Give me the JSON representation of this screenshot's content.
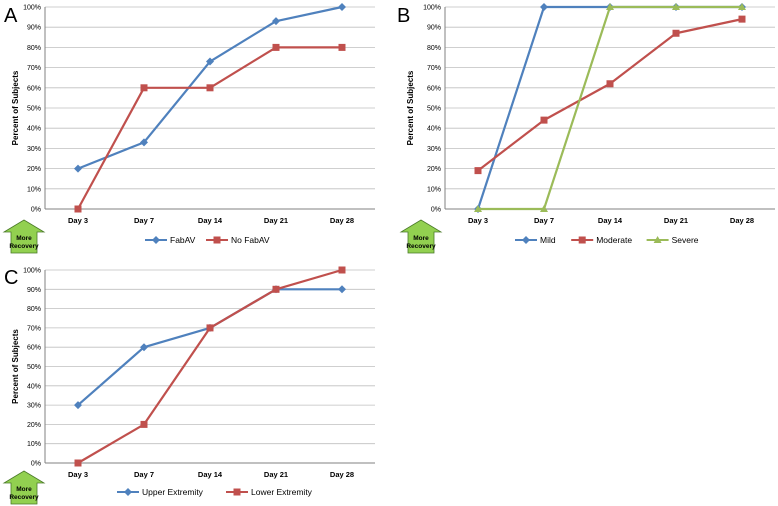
{
  "colors": {
    "blue": "#4f81bd",
    "red": "#c0504d",
    "green": "#9bbb59",
    "grid": "#bfbfbf",
    "arrow_fill": "#92d050",
    "arrow_stroke": "#4a7a28"
  },
  "recovery_label_line1": "More",
  "recovery_label_line2": "Recovery",
  "chart_data": [
    {
      "panel": "A",
      "type": "line",
      "ylabel": "Percent of Subjects",
      "categories": [
        "Day 3",
        "Day 7",
        "Day 14",
        "Day 21",
        "Day 28"
      ],
      "yticks": [
        "0%",
        "10%",
        "20%",
        "30%",
        "40%",
        "50%",
        "60%",
        "70%",
        "80%",
        "90%",
        "100%"
      ],
      "ylim": [
        0,
        100
      ],
      "series": [
        {
          "name": "FabAV",
          "color": "blue",
          "marker": "diamond",
          "values": [
            20,
            33,
            73,
            93,
            100
          ]
        },
        {
          "name": "No FabAV",
          "color": "red",
          "marker": "square",
          "values": [
            0,
            60,
            60,
            80,
            80
          ]
        }
      ]
    },
    {
      "panel": "B",
      "type": "line",
      "ylabel": "Percent of Subjects",
      "categories": [
        "Day 3",
        "Day 7",
        "Day 14",
        "Day 21",
        "Day 28"
      ],
      "yticks": [
        "0%",
        "10%",
        "20%",
        "30%",
        "40%",
        "50%",
        "60%",
        "70%",
        "80%",
        "90%",
        "100%"
      ],
      "ylim": [
        0,
        100
      ],
      "series": [
        {
          "name": "Mild",
          "color": "blue",
          "marker": "diamond",
          "values": [
            0,
            100,
            100,
            100,
            100
          ]
        },
        {
          "name": "Moderate",
          "color": "red",
          "marker": "square",
          "values": [
            19,
            44,
            62,
            87,
            94
          ]
        },
        {
          "name": "Severe",
          "color": "green",
          "marker": "triangle",
          "values": [
            0,
            0,
            100,
            100,
            100
          ]
        }
      ]
    },
    {
      "panel": "C",
      "type": "line",
      "ylabel": "Percent of Subjects",
      "categories": [
        "Day 3",
        "Day 7",
        "Day 14",
        "Day 21",
        "Day 28"
      ],
      "yticks": [
        "0%",
        "10%",
        "20%",
        "30%",
        "40%",
        "50%",
        "60%",
        "70%",
        "80%",
        "90%",
        "100%"
      ],
      "ylim": [
        0,
        100
      ],
      "series": [
        {
          "name": "Upper Extremity",
          "color": "blue",
          "marker": "diamond",
          "values": [
            30,
            60,
            70,
            90,
            90
          ]
        },
        {
          "name": "Lower Extremity",
          "color": "red",
          "marker": "square",
          "values": [
            0,
            20,
            70,
            90,
            100
          ]
        }
      ]
    }
  ]
}
